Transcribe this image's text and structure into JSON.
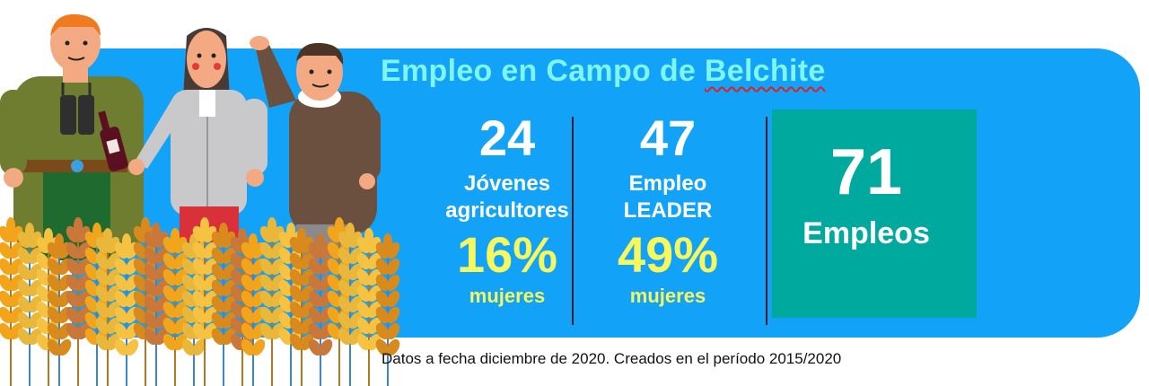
{
  "title": "Empleo en Campo de Belchite",
  "stats": [
    {
      "number": "24",
      "label_line1": "Jóvenes",
      "label_line2": "agricultores",
      "percent": "16%",
      "percent_label": "mujeres"
    },
    {
      "number": "47",
      "label_line1": "Empleo",
      "label_line2": "LEADER",
      "percent": "49%",
      "percent_label": "mujeres"
    }
  ],
  "total": {
    "number": "71",
    "label": "Empleos"
  },
  "note": "Datos a fecha diciembre de 2020. Creados en el período 2015/2020",
  "colors": {
    "banner": "#12a2f8",
    "title": "#7ff5ef",
    "highlight": "#f7f75e",
    "total_box": "#00a99d"
  },
  "illustration": {
    "icons": [
      "farmer-with-binoculars-icon",
      "woman-farmer-icon",
      "waving-farmer-icon",
      "wheat-field-icon",
      "wine-bottle-icon"
    ]
  }
}
